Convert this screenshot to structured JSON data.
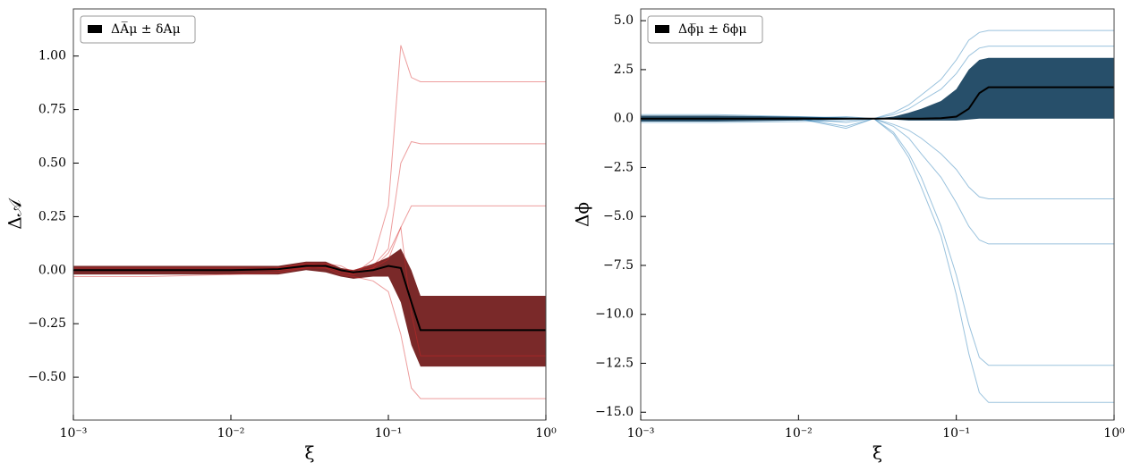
{
  "chart_data": [
    {
      "type": "line",
      "xlabel": "ξ",
      "ylabel": "Δ𝒜",
      "xscale": "log",
      "legend": "upper left",
      "xlim": [
        0.001,
        1
      ],
      "ylim": [
        -0.7,
        1.22
      ],
      "xticks": [
        {
          "value": 0.001,
          "label": "10⁻³"
        },
        {
          "value": 0.01,
          "label": "10⁻²"
        },
        {
          "value": 0.1,
          "label": "10⁻¹"
        },
        {
          "value": 1,
          "label": "10⁰"
        }
      ],
      "yticks": [
        {
          "value": -0.5,
          "label": "−0.50"
        },
        {
          "value": -0.25,
          "label": "−0.25"
        },
        {
          "value": 0,
          "label": "0.00"
        },
        {
          "value": 0.25,
          "label": "0.25"
        },
        {
          "value": 0.5,
          "label": "0.50"
        },
        {
          "value": 0.75,
          "label": "0.75"
        },
        {
          "value": 1,
          "label": "1.00"
        }
      ],
      "x": [
        0.001,
        0.003,
        0.01,
        0.02,
        0.03,
        0.04,
        0.05,
        0.06,
        0.08,
        0.1,
        0.12,
        0.14,
        0.16,
        0.3,
        1
      ],
      "band": {
        "name": "ΔA̅μ ± δAμ",
        "color": "#6b1212",
        "lower": [
          -0.02,
          -0.02,
          -0.02,
          -0.02,
          0,
          -0.01,
          -0.03,
          -0.04,
          -0.03,
          -0.03,
          -0.15,
          -0.35,
          -0.45,
          -0.45,
          -0.45
        ],
        "upper": [
          0.02,
          0.02,
          0.02,
          0.02,
          0.04,
          0.04,
          0.01,
          0,
          0.03,
          0.06,
          0.1,
          0,
          -0.12,
          -0.12,
          -0.12
        ]
      },
      "mean": {
        "color": "#000000",
        "values": [
          0,
          0,
          0,
          0.005,
          0.02,
          0.02,
          0,
          -0.01,
          0,
          0.02,
          0.01,
          -0.15,
          -0.28,
          -0.28,
          -0.28
        ]
      },
      "samples": {
        "color": "#d62728",
        "series": [
          [
            0,
            0,
            0,
            0.01,
            0.03,
            0.03,
            0,
            -0.02,
            0.05,
            0.3,
            1.05,
            0.9,
            0.88,
            0.88,
            0.88
          ],
          [
            0,
            0,
            0,
            0,
            0.02,
            0.01,
            0,
            0,
            0.02,
            0.1,
            0.5,
            0.6,
            0.59,
            0.59,
            0.59
          ],
          [
            0.01,
            0.01,
            0.01,
            0.01,
            0.03,
            0.02,
            -0.01,
            -0.02,
            0.01,
            0.05,
            0.2,
            0.3,
            0.3,
            0.3,
            0.3
          ],
          [
            -0.03,
            -0.03,
            -0.02,
            -0.01,
            0.01,
            0.01,
            -0.02,
            -0.03,
            -0.05,
            -0.1,
            -0.3,
            -0.55,
            -0.6,
            -0.6,
            -0.6
          ],
          [
            0,
            0,
            0,
            0,
            0.01,
            0.03,
            0.02,
            -0.01,
            0.01,
            0.08,
            0.2,
            -0.2,
            -0.4,
            -0.4,
            -0.4
          ]
        ]
      }
    },
    {
      "type": "line",
      "xlabel": "ξ",
      "ylabel": "Δϕ",
      "xscale": "log",
      "legend": "upper left",
      "xlim": [
        0.001,
        1
      ],
      "ylim": [
        -15.4,
        5.6
      ],
      "xticks": [
        {
          "value": 0.001,
          "label": "10⁻³"
        },
        {
          "value": 0.01,
          "label": "10⁻²"
        },
        {
          "value": 0.1,
          "label": "10⁻¹"
        },
        {
          "value": 1,
          "label": "10⁰"
        }
      ],
      "yticks": [
        {
          "value": -15,
          "label": "−15.0"
        },
        {
          "value": -12.5,
          "label": "−12.5"
        },
        {
          "value": -10,
          "label": "−10.0"
        },
        {
          "value": -7.5,
          "label": "−7.5"
        },
        {
          "value": -5,
          "label": "−5.0"
        },
        {
          "value": -2.5,
          "label": "−2.5"
        },
        {
          "value": 0,
          "label": "0.0"
        },
        {
          "value": 2.5,
          "label": "2.5"
        },
        {
          "value": 5,
          "label": "5.0"
        }
      ],
      "x": [
        0.001,
        0.003,
        0.01,
        0.02,
        0.03,
        0.04,
        0.05,
        0.06,
        0.08,
        0.1,
        0.12,
        0.14,
        0.16,
        0.3,
        1
      ],
      "band": {
        "name": "Δϕ̅μ ± δϕμ",
        "color": "#0f3c5a",
        "lower": [
          -0.15,
          -0.15,
          -0.1,
          -0.05,
          0,
          -0.05,
          -0.1,
          -0.1,
          -0.1,
          -0.1,
          -0.05,
          0,
          0,
          0,
          0
        ],
        "upper": [
          0.15,
          0.15,
          0.1,
          0.05,
          0,
          0.1,
          0.3,
          0.5,
          0.9,
          1.5,
          2.5,
          3,
          3.1,
          3.1,
          3.1
        ]
      },
      "mean": {
        "color": "#000000",
        "values": [
          0,
          0,
          0,
          0,
          0,
          0,
          0,
          0,
          0.02,
          0.1,
          0.5,
          1.3,
          1.6,
          1.6,
          1.6
        ]
      },
      "samples": {
        "color": "#1f77b4",
        "series": [
          [
            0,
            0,
            0,
            -0.5,
            0,
            -0.8,
            -2,
            -3.5,
            -6,
            -9,
            -12,
            -14,
            -14.5,
            -14.5,
            -14.5
          ],
          [
            0,
            0,
            0,
            -0.4,
            0,
            -0.7,
            -1.8,
            -3,
            -5.5,
            -8,
            -10.5,
            -12.2,
            -12.6,
            -12.6,
            -12.6
          ],
          [
            0,
            0,
            0,
            -0.2,
            0,
            -0.4,
            -1,
            -1.8,
            -3,
            -4.3,
            -5.5,
            -6.2,
            -6.4,
            -6.4,
            -6.4
          ],
          [
            0,
            0,
            0,
            0.1,
            0,
            0.3,
            0.7,
            1.2,
            2,
            3,
            4,
            4.4,
            4.5,
            4.5,
            4.5
          ],
          [
            0.2,
            0.2,
            0.1,
            0.05,
            0,
            0.2,
            0.5,
            0.9,
            1.5,
            2.3,
            3.2,
            3.6,
            3.7,
            3.7,
            3.7
          ],
          [
            -0.2,
            -0.2,
            -0.15,
            -0.1,
            0,
            -0.3,
            -0.6,
            -1,
            -1.8,
            -2.6,
            -3.5,
            -4,
            -4.1,
            -4.1,
            -4.1
          ]
        ]
      }
    }
  ]
}
